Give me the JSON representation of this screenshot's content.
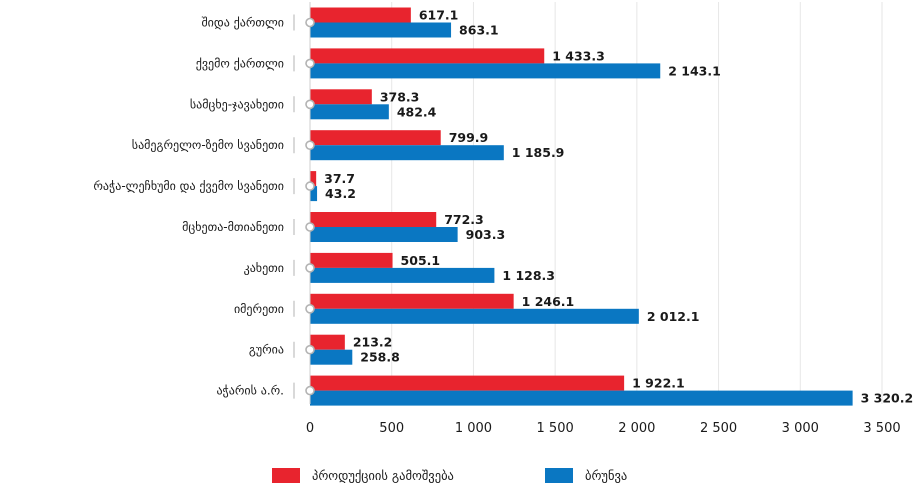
{
  "chart_data": {
    "type": "bar",
    "orientation": "horizontal",
    "categories": [
      "შიდა ქართლი",
      "ქვემო ქართლი",
      "სამცხე-ჯავახეთი",
      "სამეგრელო-ზემო სვანეთი",
      "რაჭა-ლეჩხუმი და ქვემო სვანეთი",
      "მცხეთა-მთიანეთი",
      "კახეთი",
      "იმერეთი",
      "გურია",
      "აჭარის ა.რ."
    ],
    "series": [
      {
        "name": "პროდუქციის გამოშვება",
        "color": "#e8242e",
        "values": [
          617.1,
          1433.3,
          378.3,
          799.9,
          37.7,
          772.3,
          505.1,
          1246.1,
          213.2,
          1922.1
        ],
        "labels": [
          "617.1",
          "1 433.3",
          "378.3",
          "799.9",
          "37.7",
          "772.3",
          "505.1",
          "1 246.1",
          "213.2",
          "1 922.1"
        ]
      },
      {
        "name": "ბრუნვა",
        "color": "#0a77c2",
        "values": [
          863.1,
          2143.1,
          482.4,
          1185.9,
          43.2,
          903.3,
          1128.3,
          2012.1,
          258.8,
          3320.2
        ],
        "labels": [
          "863.1",
          "2 143.1",
          "482.4",
          "1 185.9",
          "43.2",
          "903.3",
          "1 128.3",
          "2 012.1",
          "258.8",
          "3 320.2"
        ]
      }
    ],
    "xlim": [
      0,
      3500
    ],
    "xticks": [
      0,
      500,
      1000,
      1500,
      2000,
      2500,
      3000,
      3500
    ],
    "xtick_labels": [
      "0",
      "500",
      "1 000",
      "1 500",
      "2 000",
      "2 500",
      "3 000",
      "3 500"
    ],
    "title": "",
    "xlabel": "",
    "ylabel": "",
    "grid": "vertical",
    "legend_position": "bottom-center",
    "axis_marker_color": "#b3b3b3",
    "grid_color": "#e6e6e6"
  }
}
